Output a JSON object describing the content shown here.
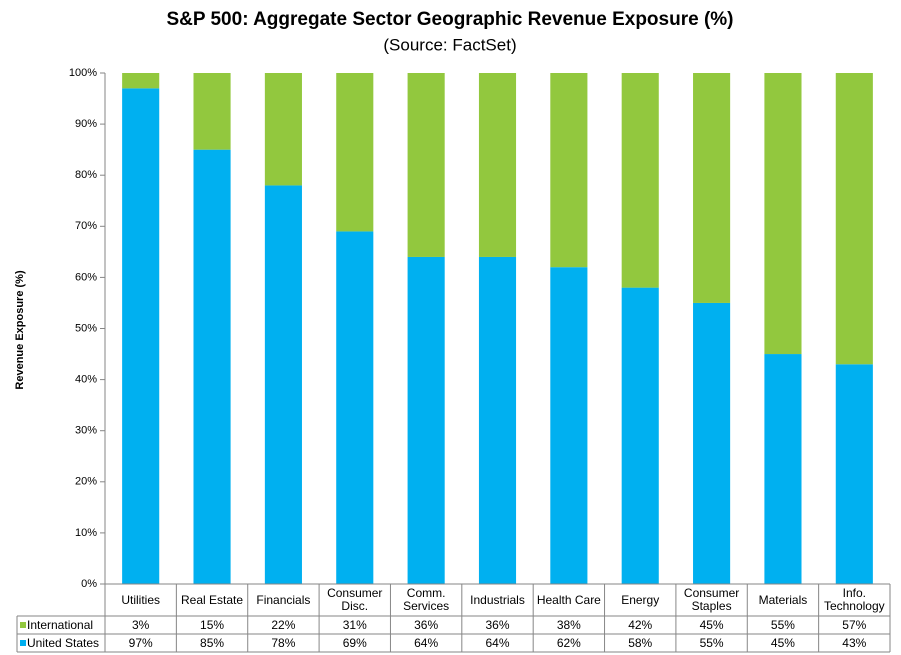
{
  "chart_data": {
    "type": "stacked_bar",
    "title": "S&P 500: Aggregate Sector Geographic Revenue Exposure (%)",
    "subtitle": "(Source: FactSet)",
    "y_label": "Revenue Exposure (%)",
    "categories": [
      "Utilities",
      "Real Estate",
      "Financials",
      "Consumer\nDisc.",
      "Comm.\nServices",
      "Industrials",
      "Health Care",
      "Energy",
      "Consumer\nStaples",
      "Materials",
      "Info.\nTechnology"
    ],
    "series": [
      {
        "name": "United States",
        "color": "#00b0f0",
        "values": [
          97,
          85,
          78,
          69,
          64,
          64,
          62,
          58,
          55,
          45,
          43
        ],
        "value_labels": [
          "97%",
          "85%",
          "78%",
          "69%",
          "64%",
          "64%",
          "62%",
          "58%",
          "55%",
          "45%",
          "43%"
        ]
      },
      {
        "name": "International",
        "color": "#92c83e",
        "values": [
          3,
          15,
          22,
          31,
          36,
          36,
          38,
          42,
          45,
          55,
          57
        ],
        "value_labels": [
          "3%",
          "15%",
          "22%",
          "31%",
          "36%",
          "36%",
          "38%",
          "42%",
          "45%",
          "55%",
          "57%"
        ]
      }
    ],
    "ylim": [
      0,
      100
    ],
    "yticks": [
      {
        "value": 0,
        "label": "0%"
      },
      {
        "value": 10,
        "label": "10%"
      },
      {
        "value": 20,
        "label": "20%"
      },
      {
        "value": 30,
        "label": "30%"
      },
      {
        "value": 40,
        "label": "40%"
      },
      {
        "value": 50,
        "label": "50%"
      },
      {
        "value": 60,
        "label": "60%"
      },
      {
        "value": 70,
        "label": "70%"
      },
      {
        "value": 80,
        "label": "80%"
      },
      {
        "value": 90,
        "label": "90%"
      },
      {
        "value": 100,
        "label": "100%"
      }
    ],
    "grid": false
  }
}
